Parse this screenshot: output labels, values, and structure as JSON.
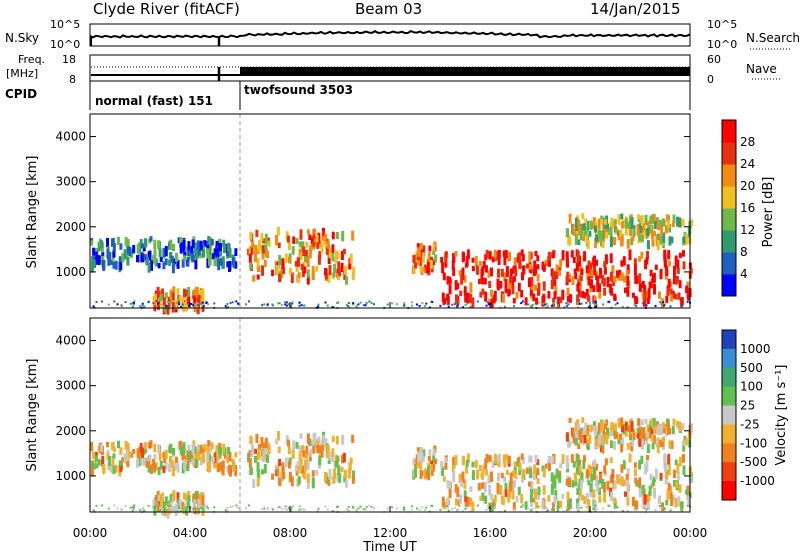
{
  "header": {
    "title": "Clyde River (fitACF)",
    "beam": "Beam 03",
    "date": "14/Jan/2015"
  },
  "noise_panel": {
    "left_label": "N.Sky",
    "left_ticks": [
      "10^5",
      "10^0"
    ],
    "right_ticks": [
      "10^5",
      "10^0"
    ],
    "right_label": "N.Search"
  },
  "freq_panel": {
    "left_label_1": "Freq.",
    "left_label_2": "[MHz]",
    "left_ticks": [
      "18",
      "8"
    ],
    "right_ticks": [
      "60",
      "0"
    ],
    "right_label": "Nave"
  },
  "cpid_panel": {
    "label": "CPID",
    "programs": [
      {
        "name": "normal (fast) 151",
        "start_hour": 0
      },
      {
        "name": "twofsound 3503",
        "start_hour": 6
      }
    ]
  },
  "chart_data": [
    {
      "type": "heatmap",
      "quantity": "Power",
      "ylabel": "Slant Range [km]",
      "xlim_hours": [
        0,
        24
      ],
      "ylim_km": [
        200,
        4500
      ],
      "yticks": [
        "1000",
        "2000",
        "3000",
        "4000"
      ],
      "colorbar": {
        "label": "Power [dB]",
        "ticks": [
          "4",
          "8",
          "12",
          "16",
          "20",
          "24",
          "28"
        ],
        "scale": [
          "#0000ff",
          "#1f5fbf",
          "#2f9b6f",
          "#6fb84a",
          "#f0c020",
          "#f58a10",
          "#e83010",
          "#ff0000"
        ]
      },
      "regions": [
        {
          "hours": [
            0,
            5.8
          ],
          "range_km": [
            1200,
            1800
          ],
          "level": "weak"
        },
        {
          "hours": [
            2.5,
            4.5
          ],
          "range_km": [
            250,
            700
          ],
          "level": "strong"
        },
        {
          "hours": [
            6.2,
            10.5
          ],
          "range_km": [
            900,
            2000
          ],
          "level": "strong"
        },
        {
          "hours": [
            12.8,
            13.8
          ],
          "range_km": [
            1100,
            1700
          ],
          "level": "strong"
        },
        {
          "hours": [
            14,
            24
          ],
          "range_km": [
            400,
            1500
          ],
          "level": "very strong"
        },
        {
          "hours": [
            19,
            24
          ],
          "range_km": [
            1700,
            2300
          ],
          "level": "medium"
        }
      ]
    },
    {
      "type": "heatmap",
      "quantity": "Velocity",
      "ylabel": "Slant Range [km]",
      "xlabel": "Time UT",
      "xlim_hours": [
        0,
        24
      ],
      "ylim_km": [
        200,
        4500
      ],
      "xticks": [
        "00:00",
        "04:00",
        "08:00",
        "12:00",
        "16:00",
        "20:00",
        "00:00"
      ],
      "yticks": [
        "1000",
        "2000",
        "3000",
        "4000"
      ],
      "colorbar": {
        "label": "Velocity [m s⁻¹]",
        "ticks": [
          "1000",
          "500",
          "100",
          "25",
          "-25",
          "-100",
          "-500",
          "-1000"
        ],
        "scale": [
          "#2040c0",
          "#3a8fd0",
          "#40a870",
          "#60c050",
          "#c8c8c8",
          "#f0b030",
          "#f08020",
          "#f04010",
          "#ff0000"
        ]
      }
    }
  ]
}
